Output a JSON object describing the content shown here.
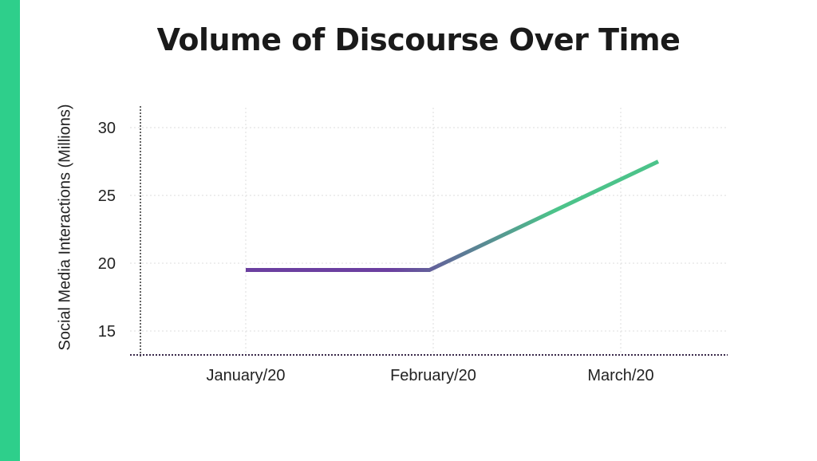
{
  "chart_data": {
    "type": "line",
    "title": "Volume of Discourse Over Time",
    "xlabel": "",
    "ylabel": "Social Media Interactions (Millions)",
    "categories": [
      "January/20",
      "February/20",
      "March/20"
    ],
    "series": [
      {
        "name": "Social Media Interactions",
        "x": [
          0,
          0.98,
          2.2
        ],
        "values": [
          19.5,
          19.5,
          27.5
        ]
      }
    ],
    "yticks": [
      15,
      20,
      25,
      30
    ],
    "ylim": [
      13.3,
      31.8
    ],
    "grid": true,
    "legend": "none",
    "colors": {
      "start": "#6b3fa0",
      "end": "#4cc38a",
      "accent": "#2ecf8b"
    }
  }
}
